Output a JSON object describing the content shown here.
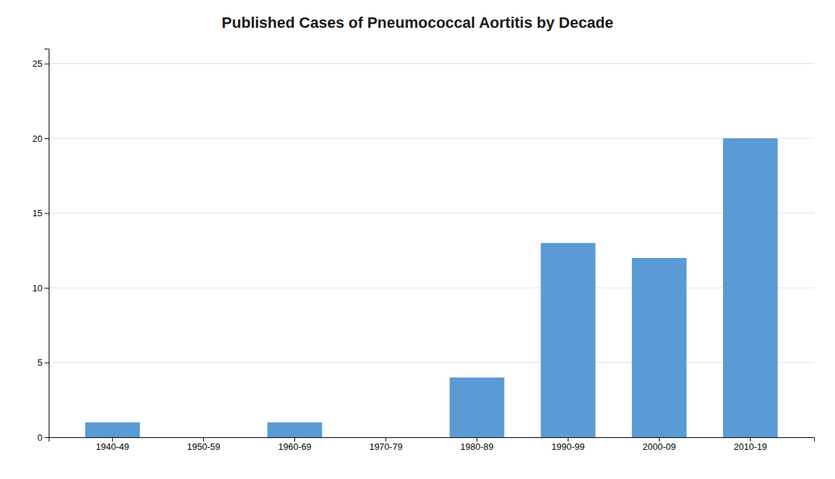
{
  "chart_data": {
    "type": "bar",
    "title": "Published Cases of Pneumococcal Aortitis by Decade",
    "categories": [
      "1940-49",
      "1950-59",
      "1960-69",
      "1970-79",
      "1980-89",
      "1990-99",
      "2000-09",
      "2010-19"
    ],
    "values": [
      1,
      0,
      1,
      0,
      4,
      13,
      12,
      20
    ],
    "color": "#5B9BD5",
    "ylim": [
      0,
      26
    ],
    "yticks": [
      0,
      5,
      10,
      15,
      20,
      25
    ],
    "grid": true
  }
}
